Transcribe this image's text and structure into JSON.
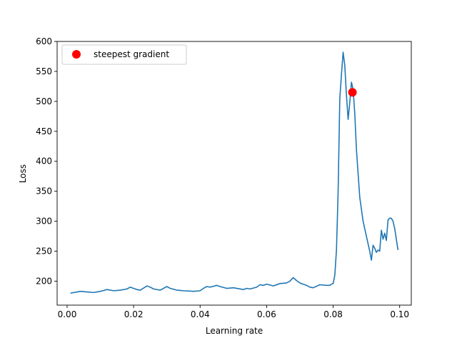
{
  "chart_data": {
    "type": "line",
    "xlabel": "Learning rate",
    "ylabel": "Loss",
    "xlim": [
      -0.003,
      0.1035
    ],
    "ylim": [
      160.0,
      600.0
    ],
    "xticks": [
      0.0,
      0.02,
      0.04,
      0.06,
      0.08,
      0.1
    ],
    "xtick_labels": [
      "0.00",
      "0.02",
      "0.04",
      "0.06",
      "0.08",
      "0.10"
    ],
    "yticks": [
      200,
      250,
      300,
      350,
      400,
      450,
      500,
      550,
      600
    ],
    "ytick_labels": [
      "200",
      "250",
      "300",
      "350",
      "400",
      "450",
      "500",
      "550",
      "600"
    ],
    "grid": false,
    "legend_position": "top-left",
    "series": [
      {
        "color": "#1f77b4",
        "x": [
          0.001,
          0.003,
          0.004,
          0.006,
          0.008,
          0.01,
          0.012,
          0.014,
          0.016,
          0.018,
          0.019,
          0.021,
          0.022,
          0.024,
          0.025,
          0.026,
          0.028,
          0.03,
          0.031,
          0.033,
          0.035,
          0.038,
          0.04,
          0.041,
          0.042,
          0.043,
          0.045,
          0.046,
          0.048,
          0.05,
          0.053,
          0.054,
          0.055,
          0.057,
          0.058,
          0.059,
          0.06,
          0.062,
          0.064,
          0.066,
          0.067,
          0.068,
          0.069,
          0.07,
          0.072,
          0.073,
          0.074,
          0.076,
          0.078,
          0.079,
          0.0795,
          0.08,
          0.0805,
          0.081,
          0.0815,
          0.082,
          0.0825,
          0.083,
          0.0835,
          0.084,
          0.0845,
          0.085,
          0.0855,
          0.086,
          0.0865,
          0.087,
          0.0875,
          0.088,
          0.089,
          0.09,
          0.091,
          0.0915,
          0.092,
          0.0925,
          0.093,
          0.0935,
          0.094,
          0.0945,
          0.095,
          0.0955,
          0.096,
          0.0965,
          0.097,
          0.0975,
          0.098,
          0.0985,
          0.099,
          0.0995
        ],
        "y": [
          180,
          182,
          183,
          182,
          181,
          183,
          186,
          184,
          185,
          187,
          190,
          186,
          185,
          192,
          190,
          187,
          185,
          191,
          188,
          185,
          184,
          183,
          184,
          188,
          191,
          190,
          193,
          191,
          188,
          189,
          186,
          188,
          187,
          190,
          194,
          193,
          195,
          192,
          196,
          197,
          200,
          206,
          201,
          197,
          193,
          190,
          189,
          194,
          193,
          193,
          195,
          196,
          210,
          252,
          350,
          505,
          545,
          582,
          560,
          510,
          470,
          498,
          532,
          520,
          480,
          420,
          380,
          340,
          300,
          275,
          250,
          235,
          260,
          255,
          248,
          252,
          250,
          285,
          270,
          280,
          268,
          302,
          305,
          305,
          300,
          288,
          270,
          252
        ]
      }
    ],
    "highlight": {
      "label": "steepest gradient",
      "x": 0.0858,
      "y": 515,
      "color": "#ff0000"
    }
  }
}
